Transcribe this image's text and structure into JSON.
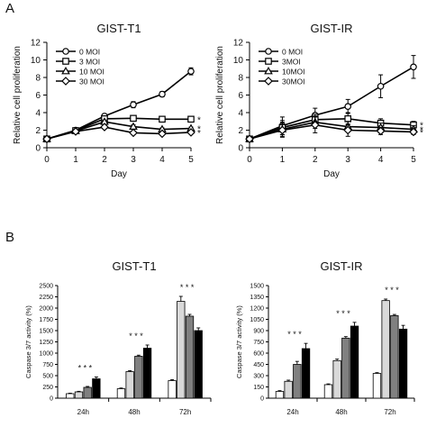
{
  "panel_labels": [
    "A",
    "B"
  ],
  "colors": {
    "axis": "#000000",
    "bar_fills": [
      "#ffffff",
      "#d9d9d9",
      "#808080",
      "#000000"
    ]
  },
  "chart_data": [
    {
      "type": "line",
      "title": "GIST-T1",
      "xlabel": "Day",
      "ylabel": "Relative cell proliferation",
      "x": [
        0,
        1,
        2,
        3,
        4,
        5
      ],
      "xlim": [
        0,
        5
      ],
      "ylim": [
        0,
        12
      ],
      "yticks": [
        0,
        2,
        4,
        6,
        8,
        10,
        12
      ],
      "legend_position": "top-left",
      "series": [
        {
          "name": "0 MOI",
          "marker": "circle",
          "values": [
            1.0,
            2.0,
            3.6,
            4.9,
            6.1,
            8.7
          ],
          "errors": [
            0.05,
            0.15,
            0.25,
            0.35,
            0.3,
            0.4
          ]
        },
        {
          "name": "3 MOI",
          "marker": "square",
          "values": [
            1.0,
            1.95,
            3.3,
            3.35,
            3.25,
            3.25
          ],
          "errors": [
            0.05,
            0.1,
            0.2,
            0.2,
            0.15,
            0.15
          ]
        },
        {
          "name": "10 MOI",
          "marker": "triangle",
          "values": [
            1.0,
            1.9,
            2.95,
            2.4,
            2.1,
            2.2
          ],
          "errors": [
            0.05,
            0.1,
            0.2,
            0.2,
            0.15,
            0.15
          ]
        },
        {
          "name": "30 MOI",
          "marker": "diamond",
          "values": [
            1.0,
            1.85,
            2.35,
            1.7,
            1.6,
            1.75
          ],
          "errors": [
            0.05,
            0.1,
            0.15,
            0.15,
            0.15,
            0.12
          ]
        }
      ],
      "annotations": [
        {
          "text": "*",
          "series": 1
        },
        {
          "text": "*",
          "series": 2
        },
        {
          "text": "*",
          "series": 3
        }
      ]
    },
    {
      "type": "line",
      "title": "GIST-IR",
      "xlabel": "Day",
      "ylabel": "Relative cell proliferation",
      "x": [
        0,
        1,
        2,
        3,
        4,
        5
      ],
      "xlim": [
        0,
        5
      ],
      "ylim": [
        0,
        12
      ],
      "yticks": [
        0,
        2,
        4,
        6,
        8,
        10,
        12
      ],
      "legend_position": "top-left",
      "series": [
        {
          "name": "0 MOI",
          "marker": "circle",
          "values": [
            1.0,
            2.5,
            3.7,
            4.7,
            7.0,
            9.2
          ],
          "errors": [
            0.1,
            1.0,
            0.8,
            0.8,
            1.3,
            1.3
          ]
        },
        {
          "name": "3MOI",
          "marker": "square",
          "values": [
            1.0,
            2.3,
            3.2,
            3.3,
            2.8,
            2.6
          ],
          "errors": [
            0.1,
            0.8,
            0.6,
            0.7,
            0.5,
            0.4
          ]
        },
        {
          "name": "10MOI",
          "marker": "triangle",
          "values": [
            1.0,
            2.1,
            2.9,
            2.4,
            2.3,
            2.1
          ],
          "errors": [
            0.1,
            0.8,
            0.7,
            0.6,
            0.5,
            0.4
          ]
        },
        {
          "name": "30MOI",
          "marker": "diamond",
          "values": [
            1.0,
            2.0,
            2.6,
            2.0,
            1.9,
            1.8
          ],
          "errors": [
            0.1,
            0.8,
            0.9,
            0.7,
            0.4,
            0.3
          ]
        }
      ],
      "annotations": [
        {
          "text": "*",
          "series": 1
        },
        {
          "text": "*",
          "series": 2
        },
        {
          "text": "*",
          "series": 3
        }
      ]
    },
    {
      "type": "bar",
      "title": "GIST-T1",
      "xlabel": "",
      "ylabel": "Caspase 3/7 activity (%)",
      "categories": [
        "24h",
        "48h",
        "72h"
      ],
      "ylim": [
        0,
        2500
      ],
      "yticks": [
        0,
        250,
        500,
        750,
        1000,
        1250,
        1500,
        1750,
        2000,
        2250,
        2500
      ],
      "series": [
        {
          "values": [
            100,
            210,
            390
          ],
          "errors": [
            10,
            15,
            20
          ]
        },
        {
          "values": [
            140,
            590,
            2150
          ],
          "errors": [
            12,
            20,
            110
          ]
        },
        {
          "values": [
            240,
            930,
            1820
          ],
          "errors": [
            20,
            25,
            40
          ]
        },
        {
          "values": [
            430,
            1110,
            1500
          ],
          "errors": [
            40,
            70,
            60
          ]
        }
      ],
      "significance": [
        "* * *",
        "* * *",
        "* * *"
      ]
    },
    {
      "type": "bar",
      "title": "GIST-IR",
      "xlabel": "",
      "ylabel": "Caspase 3/7 activity (%)",
      "categories": [
        "24h",
        "48h",
        "72h"
      ],
      "ylim": [
        0,
        1500
      ],
      "yticks": [
        0,
        150,
        300,
        450,
        600,
        750,
        900,
        1050,
        1200,
        1350,
        1500
      ],
      "series": [
        {
          "values": [
            90,
            180,
            330
          ],
          "errors": [
            10,
            10,
            10
          ]
        },
        {
          "values": [
            225,
            500,
            1300
          ],
          "errors": [
            15,
            20,
            20
          ]
        },
        {
          "values": [
            450,
            800,
            1100
          ],
          "errors": [
            40,
            20,
            15
          ]
        },
        {
          "values": [
            660,
            960,
            920
          ],
          "errors": [
            70,
            50,
            50
          ]
        }
      ],
      "significance": [
        "* * *",
        "* * *",
        "* * *"
      ]
    }
  ]
}
